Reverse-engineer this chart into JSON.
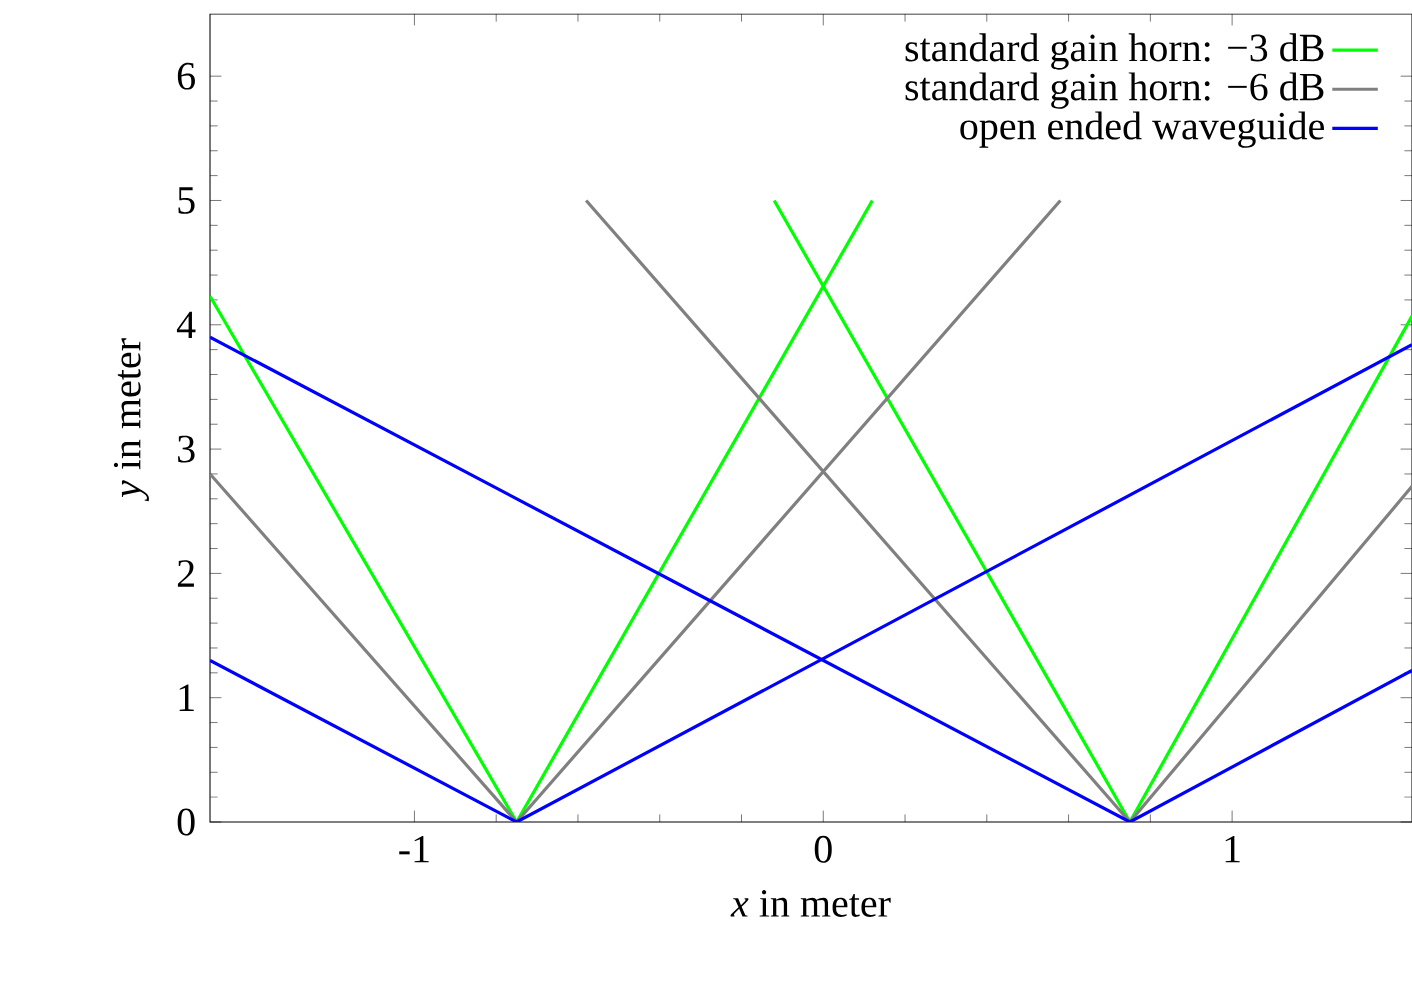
{
  "chart_data": {
    "type": "line",
    "xlabel": "*x* in meter",
    "ylabel": "*y* in meter",
    "xlim": [
      -1.5,
      1.44
    ],
    "ylim": [
      0,
      6.5
    ],
    "xticks": [
      -1,
      0,
      1
    ],
    "yticks": [
      0,
      1,
      2,
      3,
      4,
      5,
      6
    ],
    "legend": "top right",
    "grid": false,
    "marker": "none",
    "line_style": "solid",
    "series": [
      {
        "name": "standard gain horn: −3 dB",
        "color": "#00ff00",
        "x": [
          -1.5,
          -0.75,
          0.12,
          0,
          -0.12,
          0.75,
          1.44
        ],
        "values": [
          4.23,
          0,
          5,
          null,
          5,
          0,
          4.07
        ]
      },
      {
        "name": "standard gain horn: −6 dB",
        "color": "#808080",
        "x": [
          -1.5,
          -0.75,
          0.58,
          0,
          -0.58,
          0.75,
          1.44
        ],
        "values": [
          2.8,
          0,
          5,
          null,
          5,
          0,
          2.7
        ]
      },
      {
        "name": "open ended waveguide",
        "color": "#0000ff",
        "x": [
          -1.5,
          -0.75,
          1.44,
          0,
          -1.5,
          0.75,
          1.44
        ],
        "values": [
          1.3,
          0,
          3.84,
          null,
          3.9,
          0,
          1.22
        ]
      }
    ]
  }
}
